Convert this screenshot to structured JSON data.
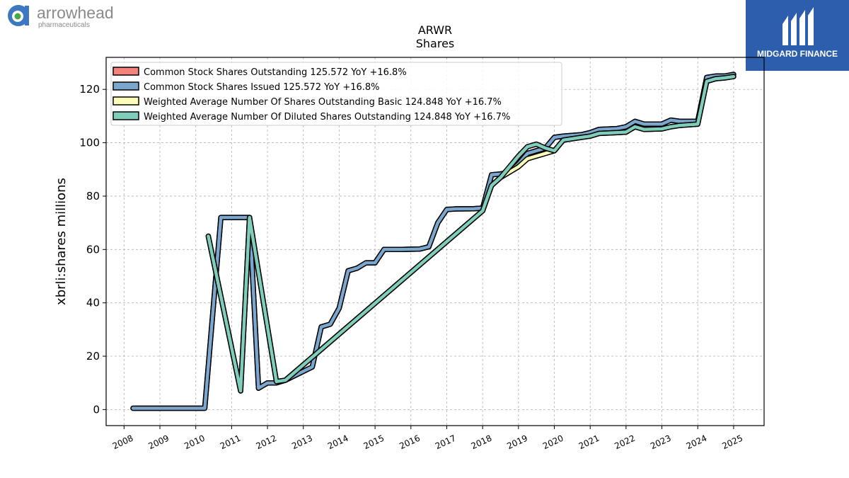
{
  "logos": {
    "left_name": "arrowhead",
    "left_sub": "pharmaceuticals",
    "right_name": "MIDGARD FINANCE",
    "colors": {
      "arrowhead": "#3f78c2",
      "arrowhead_dot": "#4ba84a",
      "midgard_bg": "#2d5ead"
    }
  },
  "chart_data": {
    "type": "line",
    "title": "ARWR",
    "subtitle": "Shares",
    "xlabel": "",
    "ylabel": "xbrli:shares millions",
    "xlim": [
      2007.5,
      2025.85
    ],
    "ylim": [
      -6,
      132
    ],
    "yticks": [
      0,
      20,
      40,
      60,
      80,
      100,
      120
    ],
    "xticks": [
      "2008",
      "2009",
      "2010",
      "2011",
      "2012",
      "2013",
      "2014",
      "2015",
      "2016",
      "2017",
      "2018",
      "2019",
      "2020",
      "2021",
      "2022",
      "2023",
      "2024",
      "2025"
    ],
    "grid": true,
    "legend_position": "top-left",
    "series": [
      {
        "name": "Common Stock Shares Outstanding",
        "legend": "Common Stock Shares Outstanding  125.572 YoY +16.8%",
        "color": "#f4837c",
        "points": [
          [
            2008.25,
            0.5
          ],
          [
            2010.25,
            0.5
          ],
          [
            2010.7,
            72
          ],
          [
            2011.2,
            72
          ],
          [
            2011.5,
            72
          ],
          [
            2011.75,
            8
          ],
          [
            2012.0,
            10
          ],
          [
            2012.25,
            10
          ],
          [
            2012.5,
            11
          ],
          [
            2013.25,
            16
          ],
          [
            2013.5,
            31
          ],
          [
            2013.75,
            32
          ],
          [
            2014.0,
            38
          ],
          [
            2014.25,
            52
          ],
          [
            2014.5,
            53
          ],
          [
            2014.75,
            55
          ],
          [
            2015.0,
            55
          ],
          [
            2015.25,
            60
          ],
          [
            2015.75,
            60
          ],
          [
            2016.25,
            60.2
          ],
          [
            2016.5,
            61
          ],
          [
            2016.75,
            70
          ],
          [
            2017.0,
            75
          ],
          [
            2017.25,
            75.2
          ],
          [
            2017.75,
            75.3
          ],
          [
            2018.0,
            75.5
          ],
          [
            2018.25,
            88
          ],
          [
            2018.5,
            88.3
          ],
          [
            2018.75,
            89
          ],
          [
            2019.0,
            92
          ],
          [
            2019.25,
            96
          ],
          [
            2019.5,
            97
          ],
          [
            2019.75,
            98
          ],
          [
            2020.0,
            102
          ],
          [
            2020.25,
            102.5
          ],
          [
            2020.75,
            103
          ],
          [
            2021.0,
            103.8
          ],
          [
            2021.25,
            105
          ],
          [
            2021.75,
            105.3
          ],
          [
            2022.0,
            106
          ],
          [
            2022.25,
            108
          ],
          [
            2022.5,
            107
          ],
          [
            2023.0,
            107
          ],
          [
            2023.25,
            108.5
          ],
          [
            2023.5,
            108
          ],
          [
            2024.0,
            108
          ],
          [
            2024.25,
            124.5
          ],
          [
            2024.5,
            125
          ],
          [
            2024.75,
            125
          ],
          [
            2025.0,
            125.6
          ]
        ]
      },
      {
        "name": "Common Stock Shares Issued",
        "legend": "Common Stock Shares Issued  125.572 YoY +16.8%",
        "color": "#7ba7cf",
        "points": [
          [
            2008.25,
            0.5
          ],
          [
            2010.25,
            0.5
          ],
          [
            2010.7,
            72
          ],
          [
            2011.2,
            72
          ],
          [
            2011.5,
            72
          ],
          [
            2011.75,
            8
          ],
          [
            2012.0,
            10
          ],
          [
            2012.25,
            10
          ],
          [
            2012.5,
            11
          ],
          [
            2013.25,
            16
          ],
          [
            2013.5,
            31
          ],
          [
            2013.75,
            32
          ],
          [
            2014.0,
            38
          ],
          [
            2014.25,
            52
          ],
          [
            2014.5,
            53
          ],
          [
            2014.75,
            55
          ],
          [
            2015.0,
            55
          ],
          [
            2015.25,
            60
          ],
          [
            2015.75,
            60
          ],
          [
            2016.25,
            60.2
          ],
          [
            2016.5,
            61
          ],
          [
            2016.75,
            70
          ],
          [
            2017.0,
            75
          ],
          [
            2017.25,
            75.2
          ],
          [
            2017.75,
            75.3
          ],
          [
            2018.0,
            75.5
          ],
          [
            2018.25,
            88
          ],
          [
            2018.5,
            88.3
          ],
          [
            2018.75,
            89
          ],
          [
            2019.0,
            92
          ],
          [
            2019.25,
            96
          ],
          [
            2019.5,
            97
          ],
          [
            2019.75,
            98
          ],
          [
            2020.0,
            102
          ],
          [
            2020.25,
            102.5
          ],
          [
            2020.75,
            103
          ],
          [
            2021.0,
            103.8
          ],
          [
            2021.25,
            105
          ],
          [
            2021.75,
            105.3
          ],
          [
            2022.0,
            106
          ],
          [
            2022.25,
            108
          ],
          [
            2022.5,
            107
          ],
          [
            2023.0,
            107
          ],
          [
            2023.25,
            108.5
          ],
          [
            2023.5,
            108
          ],
          [
            2024.0,
            108
          ],
          [
            2024.25,
            124.5
          ],
          [
            2024.5,
            125
          ],
          [
            2024.75,
            125
          ],
          [
            2025.0,
            125.6
          ]
        ]
      },
      {
        "name": "Weighted Average Number Of Shares Outstanding Basic",
        "legend": "Weighted Average Number Of Shares Outstanding Basic  124.848 YoY +16.7%",
        "color": "#fdfdb8",
        "points": [
          [
            2010.35,
            65
          ],
          [
            2011.25,
            7
          ],
          [
            2011.5,
            72
          ],
          [
            2012.25,
            10.5
          ],
          [
            2012.5,
            11
          ],
          [
            2018.0,
            74.5
          ],
          [
            2018.25,
            84
          ],
          [
            2018.5,
            87
          ],
          [
            2018.75,
            89
          ],
          [
            2019.0,
            91
          ],
          [
            2019.25,
            94
          ],
          [
            2019.5,
            95
          ],
          [
            2019.75,
            96
          ],
          [
            2020.0,
            97
          ],
          [
            2020.25,
            101
          ],
          [
            2020.75,
            102
          ],
          [
            2021.0,
            102.5
          ],
          [
            2021.25,
            103.5
          ],
          [
            2021.75,
            103.8
          ],
          [
            2022.0,
            104
          ],
          [
            2022.25,
            106
          ],
          [
            2022.5,
            105
          ],
          [
            2023.0,
            105.2
          ],
          [
            2023.25,
            106
          ],
          [
            2023.5,
            106.5
          ],
          [
            2024.0,
            107
          ],
          [
            2024.25,
            123
          ],
          [
            2024.5,
            124
          ],
          [
            2024.75,
            124.3
          ],
          [
            2025.0,
            124.8
          ]
        ]
      },
      {
        "name": "Weighted Average Number Of Diluted Shares Outstanding",
        "legend": "Weighted Average Number Of Diluted Shares Outstanding  124.848 YoY +16.7%",
        "color": "#7fcdbb",
        "points": [
          [
            2010.35,
            65
          ],
          [
            2011.25,
            7
          ],
          [
            2011.5,
            72
          ],
          [
            2012.25,
            10.5
          ],
          [
            2012.5,
            11
          ],
          [
            2018.0,
            74.5
          ],
          [
            2018.25,
            84
          ],
          [
            2018.5,
            87
          ],
          [
            2018.75,
            91
          ],
          [
            2019.0,
            95
          ],
          [
            2019.25,
            98.5
          ],
          [
            2019.5,
            99.5
          ],
          [
            2019.75,
            98
          ],
          [
            2020.0,
            97
          ],
          [
            2020.25,
            101
          ],
          [
            2020.75,
            102
          ],
          [
            2021.0,
            102.5
          ],
          [
            2021.25,
            103.5
          ],
          [
            2021.75,
            103.8
          ],
          [
            2022.0,
            104
          ],
          [
            2022.25,
            106
          ],
          [
            2022.5,
            105
          ],
          [
            2023.0,
            105.2
          ],
          [
            2023.25,
            106
          ],
          [
            2023.5,
            106.5
          ],
          [
            2024.0,
            107
          ],
          [
            2024.25,
            123
          ],
          [
            2024.5,
            124
          ],
          [
            2024.75,
            124.3
          ],
          [
            2025.0,
            124.8
          ]
        ]
      }
    ]
  }
}
